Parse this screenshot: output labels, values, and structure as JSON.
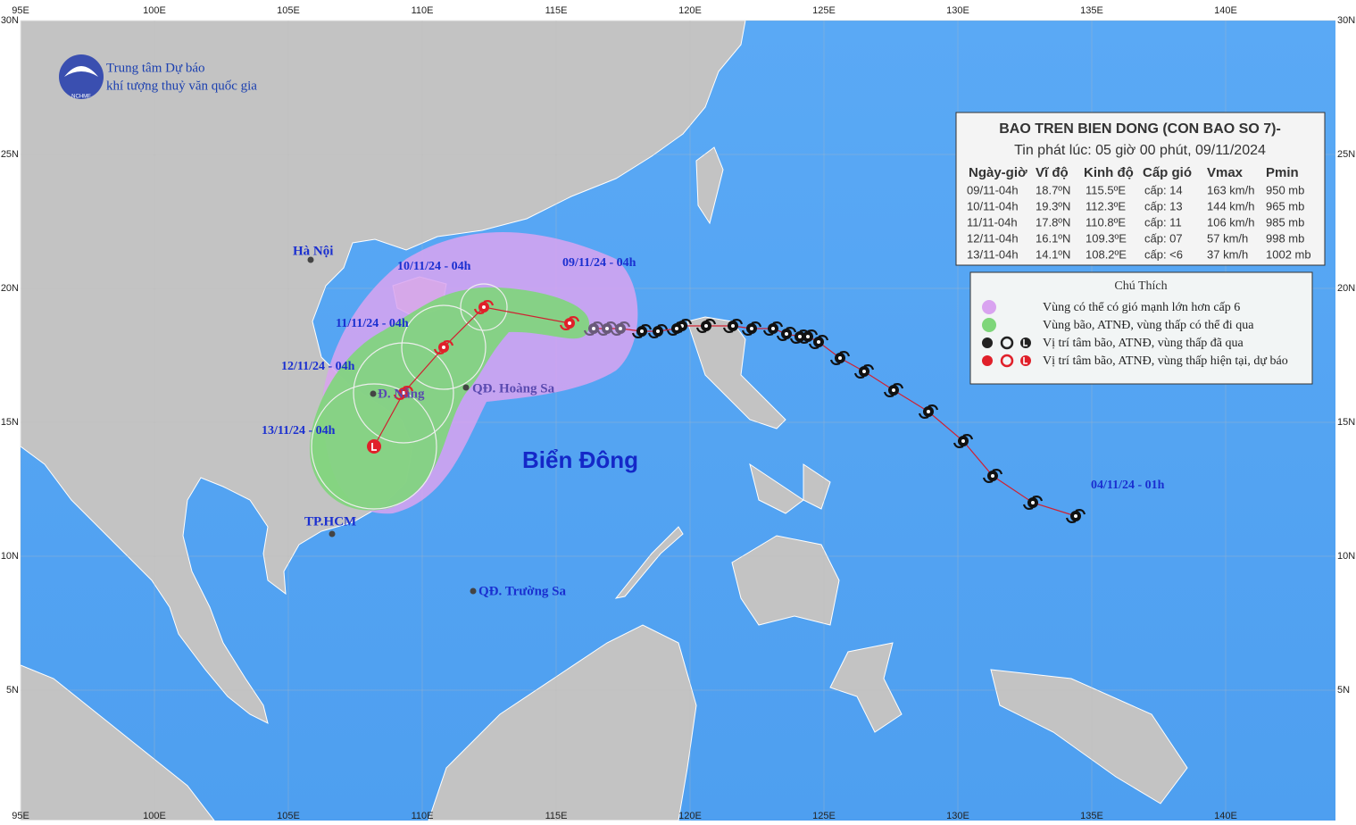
{
  "header": {
    "org_line1": "Trung tâm Dự báo",
    "org_line2": "khí tượng thuỷ văn quốc gia",
    "logo_text": "NCHMF"
  },
  "axes": {
    "lon_ticks": [
      {
        "value": 95,
        "label": "95E"
      },
      {
        "value": 100,
        "label": "100E"
      },
      {
        "value": 105,
        "label": "105E"
      },
      {
        "value": 110,
        "label": "110E"
      },
      {
        "value": 115,
        "label": "115E"
      },
      {
        "value": 120,
        "label": "120E"
      },
      {
        "value": 125,
        "label": "125E"
      },
      {
        "value": 130,
        "label": "130E"
      },
      {
        "value": 135,
        "label": "135E"
      },
      {
        "value": 140,
        "label": "140E"
      }
    ],
    "lat_ticks": [
      {
        "value": 30,
        "label": "30N"
      },
      {
        "value": 25,
        "label": "25N"
      },
      {
        "value": 20,
        "label": "20N"
      },
      {
        "value": 15,
        "label": "15N"
      },
      {
        "value": 10,
        "label": "10N"
      },
      {
        "value": 5,
        "label": "5N"
      }
    ]
  },
  "table": {
    "title": "BAO TREN BIEN DONG (CON BAO SO 7)-",
    "subtitle": "Tin phát lúc: 05 giờ 00 phút, 09/11/2024",
    "columns": [
      "Ngày-giờ",
      "Vĩ độ",
      "Kinh độ",
      "Cấp gió",
      "Vmax",
      "Pmin"
    ],
    "rows": [
      [
        "09/11-04h",
        "18.7ºN",
        "115.5ºE",
        "cấp: 14",
        "163 km/h",
        "950 mb"
      ],
      [
        "10/11-04h",
        "19.3ºN",
        "112.3ºE",
        "cấp: 13",
        "144 km/h",
        "965 mb"
      ],
      [
        "11/11-04h",
        "17.8ºN",
        "110.8ºE",
        "cấp: 11",
        "106 km/h",
        "985 mb"
      ],
      [
        "12/11-04h",
        "16.1ºN",
        "109.3ºE",
        "cấp: 07",
        "57 km/h",
        "998 mb"
      ],
      [
        "13/11-04h",
        "14.1ºN",
        "108.2ºE",
        "cấp: <6",
        "37 km/h",
        "1002 mb"
      ]
    ]
  },
  "legend": {
    "title": "Chú Thích",
    "items": [
      "Vùng có thể có gió mạnh lớn hơn cấp 6",
      "Vùng bão, ATNĐ, vùng thấp có thể đi qua",
      "Vị trí tâm bão, ATNĐ, vùng thấp đã qua",
      "Vị trí tâm bão, ATNĐ, vùng thấp hiện tại, dự báo"
    ]
  },
  "track_labels": [
    "09/11/24 - 04h",
    "10/11/24 - 04h",
    "11/11/24 - 04h",
    "12/11/24 - 04h",
    "13/11/24 - 04h",
    "04/11/24 - 01h"
  ],
  "places": [
    "Hà Nội",
    "Đ. Nẵng",
    "QĐ. Hoàng Sa",
    "TP.HCM",
    "QĐ. Trường Sa",
    "Biển Đông"
  ],
  "track": {
    "past": [
      [
        134.4,
        11.5
      ],
      [
        132.8,
        12.0
      ],
      [
        131.3,
        13.0
      ],
      [
        130.2,
        14.3
      ],
      [
        128.9,
        15.4
      ],
      [
        127.6,
        16.2
      ],
      [
        126.5,
        16.9
      ],
      [
        125.6,
        17.4
      ],
      [
        124.8,
        18.0
      ],
      [
        124.4,
        18.2
      ],
      [
        124.1,
        18.2
      ],
      [
        123.6,
        18.3
      ],
      [
        123.1,
        18.5
      ],
      [
        122.3,
        18.5
      ],
      [
        121.6,
        18.6
      ],
      [
        120.6,
        18.6
      ],
      [
        119.7,
        18.6
      ],
      [
        119.5,
        18.5
      ],
      [
        118.8,
        18.4
      ],
      [
        118.2,
        18.4
      ],
      [
        117.4,
        18.5
      ],
      [
        116.9,
        18.5
      ],
      [
        116.4,
        18.5
      ]
    ],
    "forecast": [
      [
        115.5,
        18.7
      ],
      [
        112.3,
        19.3
      ],
      [
        110.8,
        17.8
      ],
      [
        109.3,
        16.1
      ],
      [
        108.2,
        14.1
      ]
    ]
  }
}
